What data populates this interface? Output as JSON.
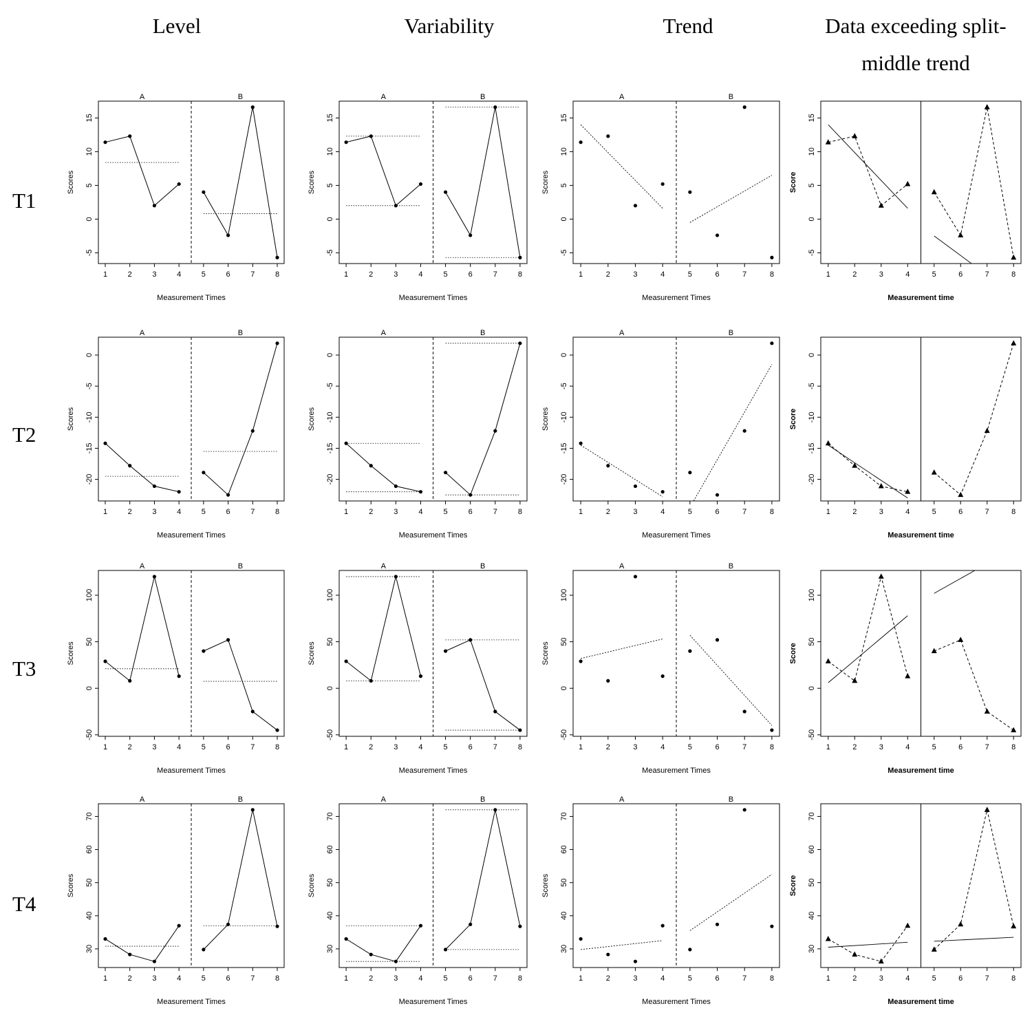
{
  "columns": [
    {
      "lines": [
        "Level"
      ]
    },
    {
      "lines": [
        "Variability"
      ]
    },
    {
      "lines": [
        "Trend"
      ]
    },
    {
      "lines": [
        "Data exceeding split-",
        "middle trend"
      ]
    }
  ],
  "rows": [
    "T1",
    "T2",
    "T3",
    "T4"
  ],
  "phase_labels": [
    "A",
    "B"
  ],
  "axis_labels": {
    "panel_x": "Measurement Times",
    "panel_y": "Scores",
    "sm_x": "Measurement time",
    "sm_y": "Score"
  },
  "chart_data": {
    "type": "line",
    "x": [
      1,
      2,
      3,
      4,
      5,
      6,
      7,
      8
    ],
    "phase_boundary": 4.5,
    "series": [
      {
        "name": "T1",
        "y": [
          11.4,
          12.3,
          2.0,
          5.2,
          4.0,
          -2.4,
          16.6,
          -5.7
        ],
        "ylim": [
          -5.7,
          16.6
        ],
        "yticks": [
          -5,
          0,
          5,
          10,
          15
        ],
        "level": [
          8.4,
          0.8
        ],
        "range": [
          [
            2.0,
            12.3
          ],
          [
            -5.7,
            16.6
          ]
        ],
        "trend": [
          [
            14.0,
            1.6
          ],
          [
            -0.5,
            6.5
          ]
        ],
        "split_middle": [
          [
            14.0,
            1.6
          ],
          [
            -2.5,
            -11.2
          ]
        ]
      },
      {
        "name": "T2",
        "y": [
          -14.2,
          -17.8,
          -21.1,
          -22.0,
          -18.9,
          -22.5,
          -12.2,
          1.9
        ],
        "ylim": [
          -22.5,
          1.9
        ],
        "yticks": [
          -20,
          -15,
          -10,
          -5,
          0
        ],
        "level": [
          -19.5,
          -15.5
        ],
        "range": [
          [
            -22.0,
            -14.2
          ],
          [
            -22.5,
            1.9
          ]
        ],
        "trend": [
          [
            -14.5,
            -22.8
          ],
          [
            -24.5,
            -1.5
          ]
        ],
        "split_middle": [
          [
            -14.5,
            -23.0
          ],
          null
        ]
      },
      {
        "name": "T3",
        "y": [
          29.0,
          8.0,
          120.0,
          13.0,
          40.0,
          52.0,
          -25.0,
          -45.0
        ],
        "ylim": [
          -45,
          120
        ],
        "yticks": [
          -50,
          0,
          50,
          100
        ],
        "level": [
          21.0,
          7.5
        ],
        "range": [
          [
            8.0,
            120.0
          ],
          [
            -45.0,
            52.0
          ]
        ],
        "trend": [
          [
            32.0,
            53.0
          ],
          [
            57.0,
            -40.0
          ]
        ],
        "split_middle": [
          [
            6.0,
            78.0
          ],
          [
            102.0,
            150.0
          ]
        ]
      },
      {
        "name": "T4",
        "y": [
          33.0,
          28.3,
          26.2,
          37.0,
          29.8,
          37.4,
          72.0,
          36.8
        ],
        "ylim": [
          26.2,
          72.0
        ],
        "yticks": [
          30,
          40,
          50,
          60,
          70
        ],
        "level": [
          30.8,
          37.0
        ],
        "range": [
          [
            26.2,
            37.0
          ],
          [
            29.8,
            72.0
          ]
        ],
        "trend": [
          [
            29.8,
            32.5
          ],
          [
            35.5,
            52.5
          ]
        ],
        "split_middle": [
          [
            30.5,
            32.0
          ],
          [
            32.3,
            33.5
          ]
        ]
      }
    ]
  }
}
